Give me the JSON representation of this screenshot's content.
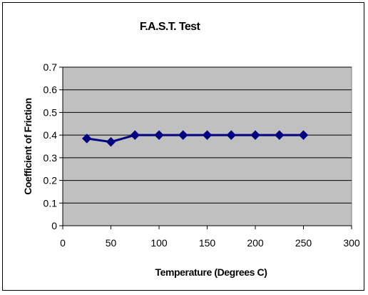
{
  "chart_data": {
    "type": "line",
    "title": "F.A.S.T. Test",
    "xlabel": "Temperature (Degrees C)",
    "ylabel": "Coefficient of Friction",
    "xlim": [
      0,
      300
    ],
    "ylim": [
      0,
      0.7
    ],
    "x_ticks": [
      "0",
      "50",
      "100",
      "150",
      "200",
      "250",
      "300"
    ],
    "y_ticks": [
      "0",
      "0.1",
      "0.2",
      "0.3",
      "0.4",
      "0.5",
      "0.6",
      "0.7"
    ],
    "grid": "horizontal",
    "legend": "none",
    "series": [
      {
        "x": [
          25,
          50,
          75,
          100,
          125,
          150,
          175,
          200,
          225,
          250
        ],
        "y": [
          0.385,
          0.37,
          0.4,
          0.4,
          0.4,
          0.4,
          0.4,
          0.4,
          0.4,
          0.4
        ],
        "marker": "diamond",
        "color": "#000080"
      }
    ],
    "plot_background": "#c0c0c0"
  }
}
